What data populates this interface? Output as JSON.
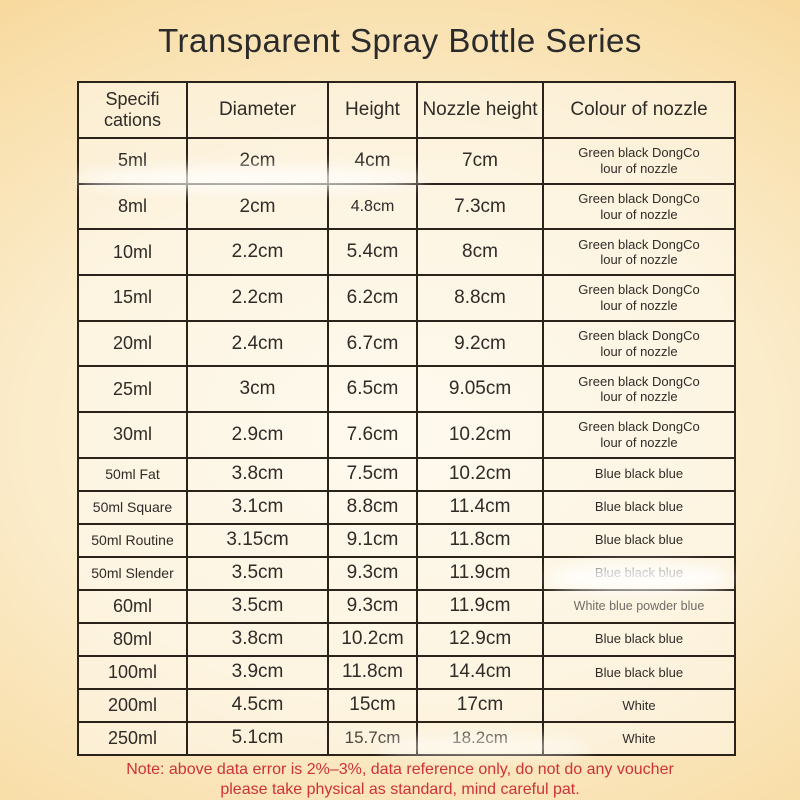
{
  "title": "Transparent Spray Bottle Series",
  "table": {
    "headers": {
      "spec": "Specifi\ncations",
      "diameter": "Diameter",
      "height": "Height",
      "nozzle": "Nozzle height",
      "colour": "Colour of nozzle"
    },
    "rows": [
      {
        "spec": "5ml",
        "diameter": "2cm",
        "height": "4cm",
        "nozzle": "7cm",
        "colour": "Green black DongCo\nlour of nozzle"
      },
      {
        "spec": "8ml",
        "diameter": "2cm",
        "height": "4.8cm",
        "nozzle": "7.3cm",
        "colour": "Green black DongCo\nlour of nozzle"
      },
      {
        "spec": "10ml",
        "diameter": "2.2cm",
        "height": "5.4cm",
        "nozzle": "8cm",
        "colour": "Green black DongCo\nlour of nozzle"
      },
      {
        "spec": "15ml",
        "diameter": "2.2cm",
        "height": "6.2cm",
        "nozzle": "8.8cm",
        "colour": "Green black DongCo\nlour of nozzle"
      },
      {
        "spec": "20ml",
        "diameter": "2.4cm",
        "height": "6.7cm",
        "nozzle": "9.2cm",
        "colour": "Green black DongCo\nlour of nozzle"
      },
      {
        "spec": "25ml",
        "diameter": "3cm",
        "height": "6.5cm",
        "nozzle": "9.05cm",
        "colour": "Green black DongCo\nlour of nozzle"
      },
      {
        "spec": "30ml",
        "diameter": "2.9cm",
        "height": "7.6cm",
        "nozzle": "10.2cm",
        "colour": "Green black DongCo\nlour of nozzle"
      },
      {
        "spec": "50ml Fat",
        "diameter": "3.8cm",
        "height": "7.5cm",
        "nozzle": "10.2cm",
        "colour": "Blue black blue"
      },
      {
        "spec": "50ml Square",
        "diameter": "3.1cm",
        "height": "8.8cm",
        "nozzle": "11.4cm",
        "colour": "Blue black blue"
      },
      {
        "spec": "50ml Routine",
        "diameter": "3.15cm",
        "height": "9.1cm",
        "nozzle": "11.8cm",
        "colour": "Blue black blue"
      },
      {
        "spec": "50ml Slender",
        "diameter": "3.5cm",
        "height": "9.3cm",
        "nozzle": "11.9cm",
        "colour": "Blue black blue"
      },
      {
        "spec": "60ml",
        "diameter": "3.5cm",
        "height": "9.3cm",
        "nozzle": "11.9cm",
        "colour": "White blue powder blue"
      },
      {
        "spec": "80ml",
        "diameter": "3.8cm",
        "height": "10.2cm",
        "nozzle": "12.9cm",
        "colour": "Blue black blue"
      },
      {
        "spec": "100ml",
        "diameter": "3.9cm",
        "height": "11.8cm",
        "nozzle": "14.4cm",
        "colour": "Blue black blue"
      },
      {
        "spec": "200ml",
        "diameter": "4.5cm",
        "height": "15cm",
        "nozzle": "17cm",
        "colour": "White"
      },
      {
        "spec": "250ml",
        "diameter": "5.1cm",
        "height": "15.7cm",
        "nozzle": "18.2cm",
        "colour": "White"
      }
    ]
  },
  "note": {
    "line1": "Note: above data error is 2%–3%, data reference only, do not do any voucher",
    "line2": "please take physical as standard, mind careful pat."
  },
  "colors": {
    "note_red": "#cd3237",
    "table_border": "#2b2219",
    "text": "#2f2b26",
    "background_center": "#fdf6e2",
    "background_edge": "#f4cb80"
  }
}
